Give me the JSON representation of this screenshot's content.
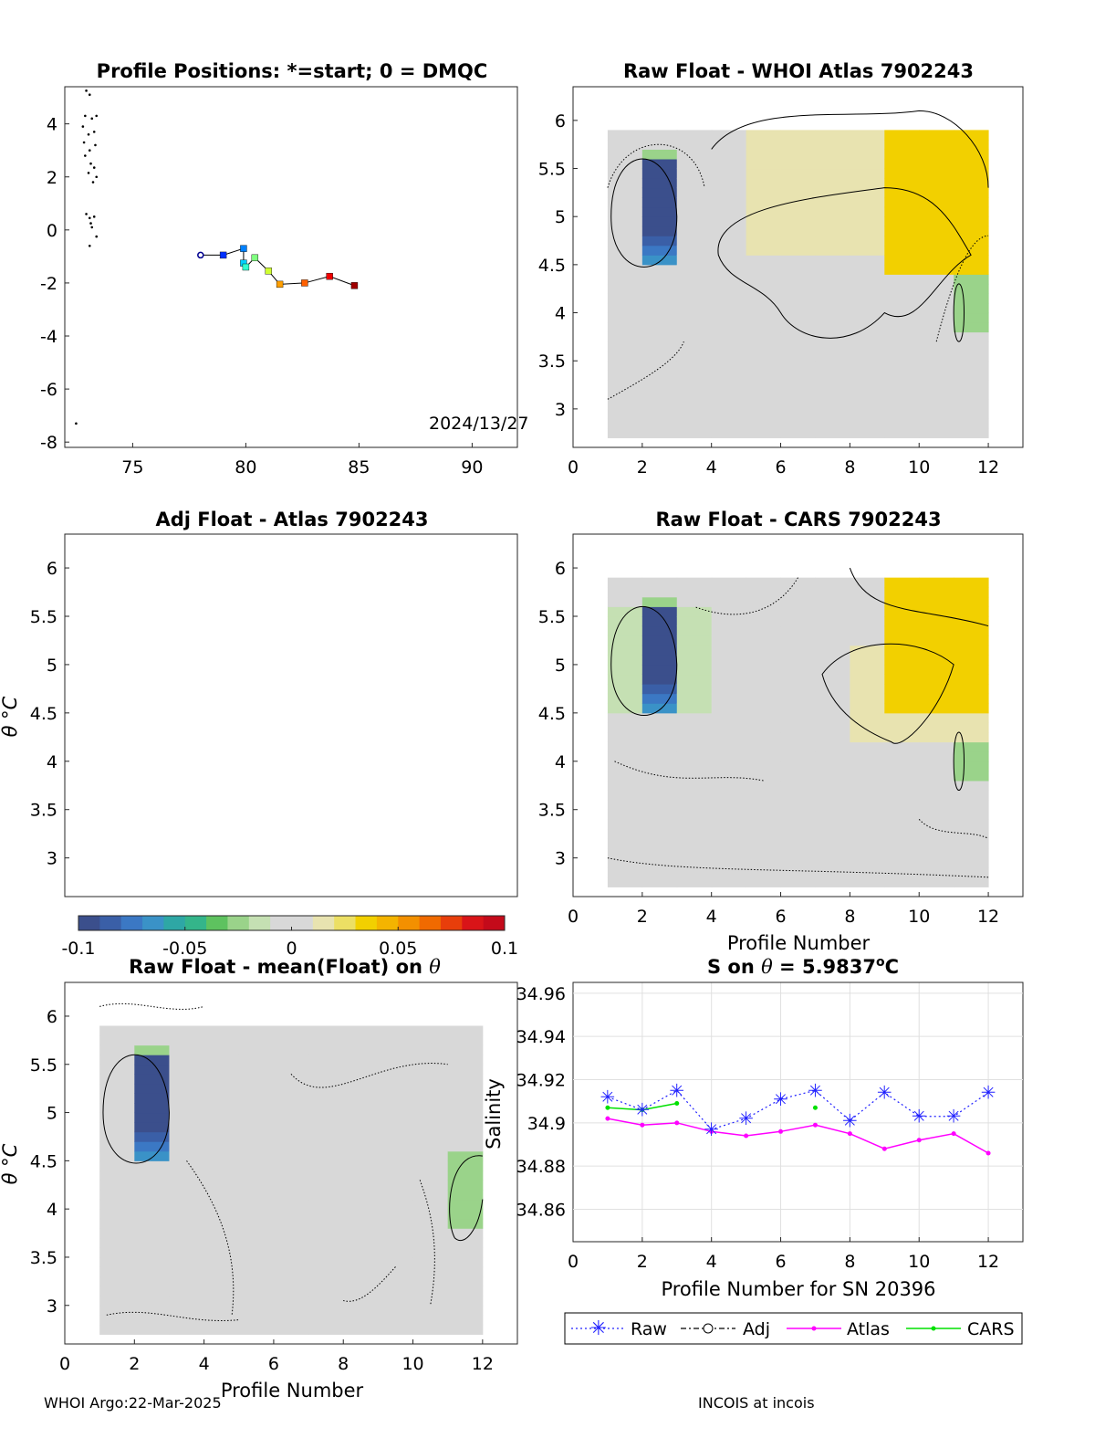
{
  "footer": {
    "left": "WHOI Argo:22-Mar-2025",
    "right": "INCOIS at incois"
  },
  "colorbar": {
    "ticks": [
      "-0.1",
      "-0.05",
      "0",
      "0.05",
      "0.1"
    ],
    "values": [
      -0.1,
      -0.05,
      0,
      0.05,
      0.1
    ],
    "colormap": [
      "#3b4f8c",
      "#3a5fa7",
      "#3b78c4",
      "#3a92c7",
      "#2ea7a5",
      "#34b58a",
      "#5ec25f",
      "#9ad38a",
      "#c5e0b3",
      "#d8d8d8",
      "#d8d8d8",
      "#e8e3b0",
      "#ecdf64",
      "#f2d000",
      "#f4b400",
      "#f39000",
      "#f06a00",
      "#e83e0b",
      "#d91418",
      "#c40a1a"
    ]
  },
  "chart_data": [
    {
      "id": "positions",
      "type": "scatter",
      "title": "Profile Positions: *=start; 0 = DMQC",
      "xlim": [
        72,
        92
      ],
      "ylim": [
        -8.2,
        5.4
      ],
      "xticks": [
        75,
        80,
        85,
        90
      ],
      "yticks": [
        4,
        2,
        0,
        -2,
        -4,
        -6,
        -8
      ],
      "annotation": "2024/13/27",
      "track": [
        {
          "x": 78.0,
          "y": -0.95,
          "color": "#00008f",
          "marker": "start"
        },
        {
          "x": 79.0,
          "y": -0.95,
          "color": "#0030ff"
        },
        {
          "x": 79.9,
          "y": -0.7,
          "color": "#0080ff"
        },
        {
          "x": 79.9,
          "y": -1.25,
          "color": "#00cfff"
        },
        {
          "x": 80.0,
          "y": -1.4,
          "color": "#30ffcf"
        },
        {
          "x": 80.4,
          "y": -1.05,
          "color": "#80ff80"
        },
        {
          "x": 81.0,
          "y": -1.55,
          "color": "#cfff30"
        },
        {
          "x": 81.5,
          "y": -2.05,
          "color": "#ff9f00"
        },
        {
          "x": 82.6,
          "y": -2.0,
          "color": "#ff6000"
        },
        {
          "x": 83.7,
          "y": -1.75,
          "color": "#ef0000"
        },
        {
          "x": 84.8,
          "y": -2.1,
          "color": "#a00000"
        }
      ],
      "coast": [
        [
          72.95,
          5.25
        ],
        [
          73.1,
          5.1
        ],
        [
          72.9,
          4.3
        ],
        [
          73.2,
          4.2
        ],
        [
          73.4,
          4.3
        ],
        [
          72.8,
          3.9
        ],
        [
          73.05,
          3.6
        ],
        [
          73.3,
          3.7
        ],
        [
          72.85,
          3.3
        ],
        [
          73.1,
          3.0
        ],
        [
          73.35,
          3.2
        ],
        [
          72.9,
          2.8
        ],
        [
          73.15,
          2.5
        ],
        [
          73.3,
          2.35
        ],
        [
          73.05,
          2.15
        ],
        [
          73.4,
          2.0
        ],
        [
          73.25,
          1.8
        ],
        [
          72.95,
          0.6
        ],
        [
          73.1,
          0.45
        ],
        [
          73.3,
          0.5
        ],
        [
          73.15,
          0.25
        ],
        [
          73.2,
          0.1
        ],
        [
          73.4,
          -0.25
        ],
        [
          73.1,
          -0.6
        ],
        [
          72.5,
          -7.3
        ]
      ]
    },
    {
      "id": "whoi",
      "type": "heatmap",
      "title": "Raw Float - WHOI Atlas  7902243",
      "xlim": [
        0,
        13
      ],
      "ylim": [
        2.6,
        6.35
      ],
      "xticks": [
        0,
        2,
        4,
        6,
        8,
        10,
        12
      ],
      "yticks": [
        6,
        5.5,
        5,
        4.5,
        4,
        3.5,
        3
      ],
      "xlabel": ""
    },
    {
      "id": "adj",
      "type": "heatmap",
      "title": "Adj Float - Atlas  7902243",
      "xlim": [
        0,
        13
      ],
      "ylim": [
        2.6,
        6.35
      ],
      "yticks": [
        6,
        5.5,
        5,
        4.5,
        4,
        3.5,
        3
      ],
      "ylabel": "θ °C"
    },
    {
      "id": "cars",
      "type": "heatmap",
      "title": "Raw Float - CARS  7902243",
      "xlim": [
        0,
        13
      ],
      "ylim": [
        2.6,
        6.35
      ],
      "xticks": [
        0,
        2,
        4,
        6,
        8,
        10,
        12
      ],
      "yticks": [
        6,
        5.5,
        5,
        4.5,
        4,
        3.5,
        3
      ],
      "xlabel": "Profile Number"
    },
    {
      "id": "mean",
      "type": "heatmap",
      "title": "Raw Float - mean(Float) on θ",
      "xlim": [
        0,
        13
      ],
      "ylim": [
        2.6,
        6.35
      ],
      "xticks": [
        0,
        2,
        4,
        6,
        8,
        10,
        12
      ],
      "yticks": [
        6,
        5.5,
        5,
        4.5,
        4,
        3.5,
        3
      ],
      "xlabel": "Profile Number",
      "ylabel": "θ °C"
    },
    {
      "id": "salinity",
      "type": "line",
      "title": "S on θ = 5.9837°C",
      "xlabel": "Profile Number for SN 20396",
      "ylabel": "Salinity",
      "xlim": [
        0,
        13
      ],
      "ylim": [
        34.845,
        34.965
      ],
      "xticks": [
        0,
        2,
        4,
        6,
        8,
        10,
        12
      ],
      "yticks": [
        34.96,
        34.94,
        34.92,
        34.9,
        34.88,
        34.86
      ],
      "grid": true,
      "series": [
        {
          "name": "Raw",
          "color": "#2020ff",
          "x": [
            1,
            2,
            3,
            4,
            5,
            6,
            7,
            8,
            9,
            10,
            11,
            12
          ],
          "values": [
            34.912,
            34.906,
            34.915,
            34.897,
            34.902,
            34.911,
            34.915,
            34.901,
            34.914,
            34.903,
            34.903,
            34.914
          ]
        },
        {
          "name": "Adj",
          "color": "#000000",
          "x": [],
          "values": []
        },
        {
          "name": "Atlas",
          "color": "#ff00ff",
          "x": [
            1,
            2,
            3,
            4,
            5,
            6,
            7,
            8,
            9,
            10,
            11,
            12
          ],
          "values": [
            34.902,
            34.899,
            34.9,
            34.896,
            34.894,
            34.896,
            34.899,
            34.895,
            34.888,
            34.892,
            34.895,
            34.886
          ]
        },
        {
          "name": "CARS",
          "color": "#00e000",
          "x": [
            1,
            2,
            3,
            7
          ],
          "values": [
            34.907,
            34.906,
            34.909,
            34.907
          ]
        }
      ],
      "legend": "bottom"
    }
  ]
}
